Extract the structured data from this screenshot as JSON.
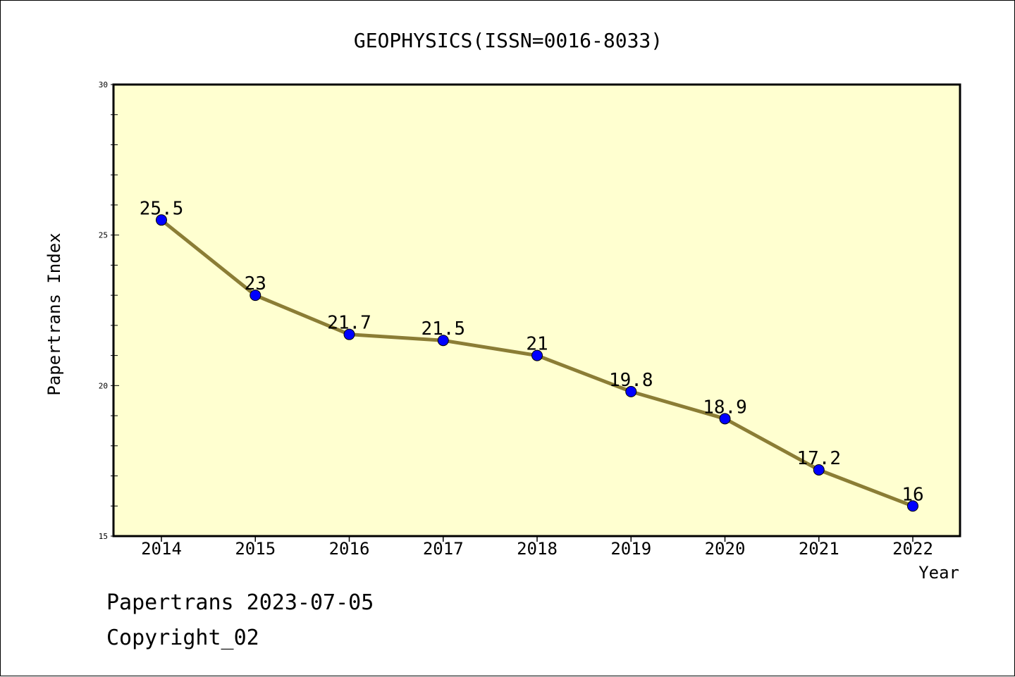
{
  "chart_data": {
    "type": "line",
    "title": "GEOPHYSICS(ISSN=0016-8033)",
    "xlabel": "Year",
    "ylabel": "Papertrans Index",
    "categories": [
      "2014",
      "2015",
      "2016",
      "2017",
      "2018",
      "2019",
      "2020",
      "2021",
      "2022"
    ],
    "series": [
      {
        "values": [
          25.5,
          23,
          21.7,
          21.5,
          21,
          19.8,
          18.9,
          17.2,
          16
        ],
        "labels": [
          "25.5",
          "23",
          "21.7",
          "21.5",
          "21",
          "19.8",
          "18.9",
          "17.2",
          "16"
        ]
      }
    ],
    "ylim": [
      15,
      30
    ],
    "yticks": [
      "15",
      "20",
      "25",
      "30"
    ],
    "grid": false,
    "colors": {
      "plot_background": "#ffffd0",
      "line": "#8b7d35",
      "marker": "#0000ff"
    }
  },
  "footer": {
    "line1": "Papertrans 2023-07-05",
    "line2": "Copyright_02"
  }
}
